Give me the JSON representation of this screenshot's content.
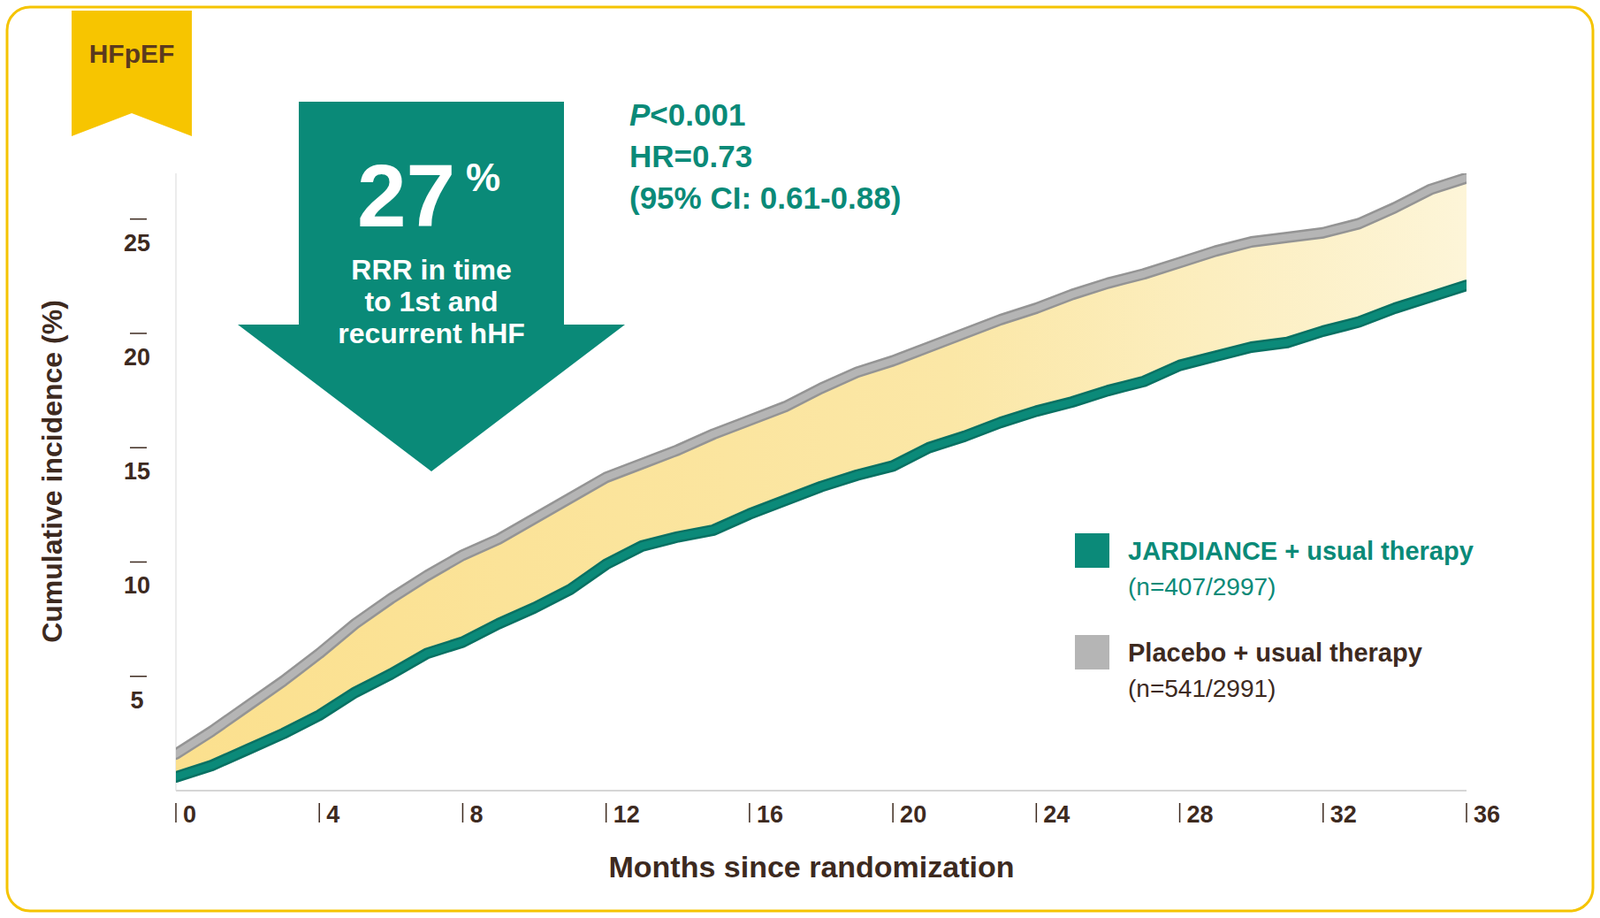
{
  "chart_data": {
    "type": "line",
    "badge": "HFpEF",
    "x_label": "Months since randomization",
    "y_label": "Cumulative incidence (%)",
    "x": [
      0,
      1,
      2,
      3,
      4,
      5,
      6,
      7,
      8,
      9,
      10,
      11,
      12,
      13,
      14,
      15,
      16,
      17,
      18,
      19,
      20,
      21,
      22,
      23,
      24,
      25,
      26,
      27,
      28,
      29,
      30,
      31,
      32,
      33,
      34,
      35,
      36
    ],
    "xlim": [
      0,
      36
    ],
    "ylim": [
      0,
      27
    ],
    "xticks": [
      0,
      4,
      8,
      12,
      16,
      20,
      24,
      28,
      32,
      36
    ],
    "yticks": [
      5,
      10,
      15,
      20,
      25
    ],
    "grid": false,
    "legend": "right",
    "callout": {
      "value": 27,
      "unit": "%",
      "lines": [
        "RRR in time",
        "to 1st and",
        "recurrent hHF"
      ]
    },
    "annotations": [
      "P<0.001",
      "HR=0.73",
      "(95% CI: 0.61-0.88)"
    ],
    "series": [
      {
        "name": "JARDIANCE + usual therapy",
        "sublabel": "(n=407/2997)",
        "color": "#0b8a79",
        "values": [
          0.6,
          1.1,
          1.8,
          2.5,
          3.3,
          4.3,
          5.1,
          6.0,
          6.5,
          7.3,
          8.0,
          8.8,
          9.9,
          10.7,
          11.1,
          11.4,
          12.1,
          12.7,
          13.3,
          13.8,
          14.2,
          15.0,
          15.5,
          16.1,
          16.6,
          17.0,
          17.5,
          17.9,
          18.6,
          19.0,
          19.4,
          19.6,
          20.1,
          20.5,
          21.1,
          21.6,
          22.1
        ]
      },
      {
        "name": "Placebo + usual therapy",
        "sublabel": "(n=541/2991)",
        "color": "#b5b5b5",
        "values": [
          1.6,
          2.6,
          3.7,
          4.8,
          6.0,
          7.3,
          8.4,
          9.4,
          10.3,
          11.0,
          11.9,
          12.8,
          13.7,
          14.3,
          14.9,
          15.6,
          16.2,
          16.8,
          17.6,
          18.3,
          18.8,
          19.4,
          20.0,
          20.6,
          21.1,
          21.7,
          22.2,
          22.6,
          23.1,
          23.6,
          24.0,
          24.2,
          24.4,
          24.8,
          25.5,
          26.3,
          26.8
        ]
      }
    ]
  }
}
